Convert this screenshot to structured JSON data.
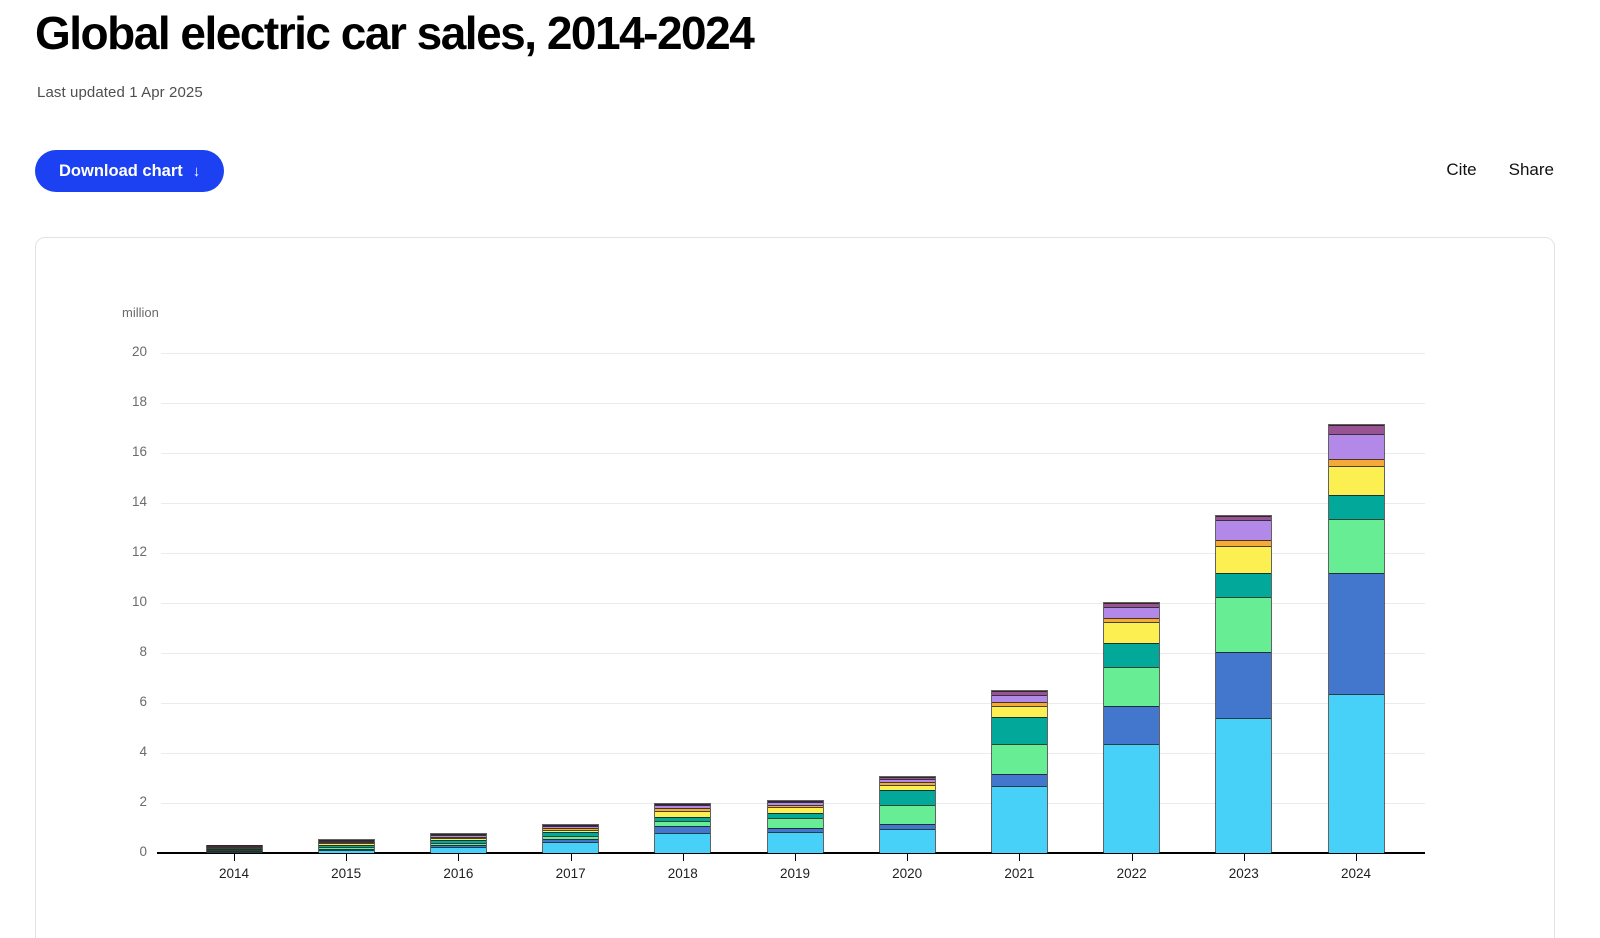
{
  "header": {
    "title": "Global electric car sales, 2014-2024",
    "last_updated": "Last updated 1 Apr 2025"
  },
  "toolbar": {
    "download_label": "Download chart",
    "download_icon": "↓",
    "cite_label": "Cite",
    "share_label": "Share"
  },
  "colors": {
    "accent_blue": "#1b41f3",
    "axis_line": "#000000",
    "gridline": "#ebebeb",
    "card_border": "#e3e3e3"
  },
  "chart_data": {
    "type": "bar",
    "stacked": true,
    "title": "Global electric car sales, 2014-2024",
    "unit_label": "million",
    "xlabel": "",
    "ylabel": "million",
    "ylim": [
      0,
      20
    ],
    "yticks": [
      0,
      2,
      4,
      6,
      8,
      10,
      12,
      14,
      16,
      18,
      20
    ],
    "grid": "horizontal",
    "legend": "none visible in screenshot",
    "categories": [
      "2014",
      "2015",
      "2016",
      "2017",
      "2018",
      "2019",
      "2020",
      "2021",
      "2022",
      "2023",
      "2024"
    ],
    "series": [
      {
        "name": "light-blue (bottom segment)",
        "color": "#47d1f8",
        "values": [
          0.05,
          0.15,
          0.26,
          0.47,
          0.82,
          0.85,
          0.97,
          2.68,
          4.39,
          5.41,
          6.37
        ]
      },
      {
        "name": "blue",
        "color": "#4377ce",
        "values": [
          0.02,
          0.06,
          0.08,
          0.11,
          0.27,
          0.18,
          0.19,
          0.51,
          1.52,
          2.64,
          4.84
        ]
      },
      {
        "name": "green",
        "color": "#67ee95",
        "values": [
          0.06,
          0.1,
          0.1,
          0.15,
          0.2,
          0.38,
          0.77,
          1.18,
          1.57,
          2.23,
          2.18
        ]
      },
      {
        "name": "teal",
        "color": "#02a89a",
        "values": [
          0.04,
          0.08,
          0.11,
          0.14,
          0.18,
          0.22,
          0.64,
          1.11,
          0.96,
          0.96,
          0.98
        ]
      },
      {
        "name": "yellow",
        "color": "#fcef51",
        "values": [
          0.08,
          0.07,
          0.1,
          0.1,
          0.24,
          0.24,
          0.2,
          0.43,
          0.83,
          1.07,
          1.15
        ]
      },
      {
        "name": "orange",
        "color": "#f6a93b",
        "values": [
          0.05,
          0.04,
          0.06,
          0.09,
          0.12,
          0.08,
          0.1,
          0.17,
          0.18,
          0.26,
          0.29
        ]
      },
      {
        "name": "light-purple",
        "color": "#b289e9",
        "values": [
          0.03,
          0.04,
          0.06,
          0.08,
          0.13,
          0.13,
          0.11,
          0.27,
          0.43,
          0.78,
          0.98
        ]
      },
      {
        "name": "purple (top segment)",
        "color": "#9a5392",
        "values": [
          0.01,
          0.01,
          0.02,
          0.03,
          0.05,
          0.04,
          0.09,
          0.16,
          0.16,
          0.18,
          0.36
        ]
      }
    ],
    "totals": [
      0.34,
      0.55,
      0.79,
      1.17,
      2.01,
      2.12,
      3.07,
      6.51,
      10.04,
      13.53,
      17.15
    ]
  }
}
